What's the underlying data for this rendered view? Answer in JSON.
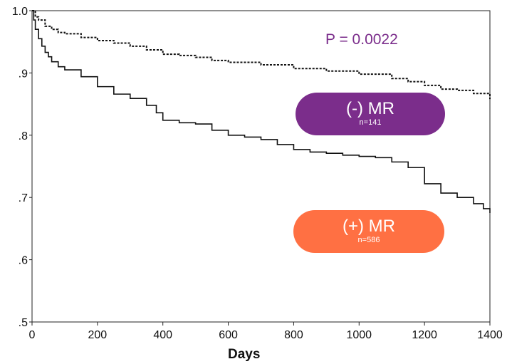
{
  "chart_data": {
    "type": "line",
    "title": "",
    "xlabel": "Days",
    "ylabel": "",
    "xlim": [
      0,
      1400
    ],
    "ylim": [
      0.5,
      1.0
    ],
    "x_ticks": [
      0,
      200,
      400,
      600,
      800,
      1000,
      1200,
      1400
    ],
    "x_tick_labels": [
      "0",
      "200",
      "400",
      "600",
      "800",
      "1000",
      "1200",
      "1400"
    ],
    "y_ticks": [
      0.5,
      0.6,
      0.7,
      0.8,
      0.9,
      1.0
    ],
    "y_tick_labels": [
      ".5",
      ".6",
      ".7",
      ".8",
      ".9",
      "1.0"
    ],
    "annotation": "P = 0.0022",
    "series": [
      {
        "label": "(-) MR",
        "n_label": "n=141",
        "style": "dashed",
        "x": [
          0,
          10,
          20,
          40,
          60,
          80,
          100,
          150,
          200,
          250,
          300,
          350,
          400,
          450,
          500,
          550,
          600,
          700,
          800,
          900,
          1000,
          1100,
          1150,
          1200,
          1250,
          1300,
          1350,
          1400
        ],
        "y": [
          1.0,
          0.99,
          0.985,
          0.975,
          0.97,
          0.965,
          0.963,
          0.957,
          0.952,
          0.948,
          0.943,
          0.937,
          0.93,
          0.928,
          0.925,
          0.92,
          0.917,
          0.913,
          0.907,
          0.903,
          0.898,
          0.891,
          0.886,
          0.88,
          0.874,
          0.872,
          0.867,
          0.858
        ]
      },
      {
        "label": "(+) MR",
        "n_label": "n=586",
        "style": "solid",
        "x": [
          0,
          5,
          10,
          20,
          30,
          40,
          50,
          60,
          80,
          100,
          150,
          200,
          250,
          300,
          350,
          380,
          400,
          450,
          500,
          550,
          600,
          650,
          700,
          750,
          800,
          850,
          900,
          950,
          1000,
          1050,
          1100,
          1150,
          1200,
          1250,
          1300,
          1350,
          1380,
          1400
        ],
        "y": [
          1.0,
          0.985,
          0.97,
          0.955,
          0.943,
          0.933,
          0.926,
          0.918,
          0.91,
          0.905,
          0.894,
          0.878,
          0.866,
          0.859,
          0.848,
          0.836,
          0.824,
          0.82,
          0.818,
          0.808,
          0.8,
          0.797,
          0.793,
          0.785,
          0.777,
          0.773,
          0.771,
          0.768,
          0.766,
          0.764,
          0.757,
          0.748,
          0.722,
          0.707,
          0.7,
          0.69,
          0.682,
          0.675
        ]
      }
    ]
  },
  "legend": {
    "neg": {
      "label": "(-) MR",
      "n": "n=141",
      "color": "#7B2D8B"
    },
    "pos": {
      "label": "(+) MR",
      "n": "n=586",
      "color": "#FF7043"
    }
  },
  "annotation_color": "#7B2D8B"
}
